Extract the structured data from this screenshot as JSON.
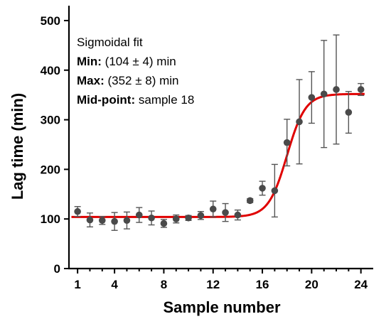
{
  "chart_data": {
    "type": "scatter",
    "xlabel": "Sample number",
    "ylabel": "Lag time (min)",
    "xlim": [
      0.3,
      25
    ],
    "ylim": [
      0,
      530
    ],
    "xticks": [
      1,
      4,
      8,
      12,
      16,
      20,
      24
    ],
    "yticks": [
      0,
      100,
      200,
      300,
      400,
      500
    ],
    "grid": false,
    "colors": {
      "points": "#4a4a4a",
      "errorbars": "#555555",
      "fit": "#e00000"
    },
    "points": [
      {
        "x": 1,
        "y": 115,
        "err": 10
      },
      {
        "x": 2,
        "y": 98,
        "err": 14
      },
      {
        "x": 3,
        "y": 97,
        "err": 8
      },
      {
        "x": 4,
        "y": 95,
        "err": 18
      },
      {
        "x": 5,
        "y": 97,
        "err": 17
      },
      {
        "x": 6,
        "y": 108,
        "err": 15
      },
      {
        "x": 7,
        "y": 102,
        "err": 14
      },
      {
        "x": 8,
        "y": 91,
        "err": 8
      },
      {
        "x": 9,
        "y": 100,
        "err": 8
      },
      {
        "x": 10,
        "y": 102,
        "err": 5
      },
      {
        "x": 11,
        "y": 107,
        "err": 8
      },
      {
        "x": 12,
        "y": 120,
        "err": 16
      },
      {
        "x": 13,
        "y": 113,
        "err": 18
      },
      {
        "x": 14,
        "y": 108,
        "err": 10
      },
      {
        "x": 15,
        "y": 137,
        "err": 4
      },
      {
        "x": 16,
        "y": 162,
        "err": 14
      },
      {
        "x": 17,
        "y": 157,
        "err": 53
      },
      {
        "x": 18,
        "y": 254,
        "err": 47
      },
      {
        "x": 19,
        "y": 296,
        "err": 85
      },
      {
        "x": 20,
        "y": 345,
        "err": 52
      },
      {
        "x": 21,
        "y": 352,
        "err": 108
      },
      {
        "x": 22,
        "y": 361,
        "err": 110
      },
      {
        "x": 23,
        "y": 315,
        "err": 42
      },
      {
        "x": 24,
        "y": 361,
        "err": 12
      }
    ],
    "fit": {
      "model": "sigmoid",
      "min": 104,
      "max": 352,
      "midpoint": 18,
      "slope": 0.75,
      "x_range": [
        0.5,
        24.3
      ]
    },
    "annotation": {
      "title": "Sigmoidal fit",
      "min_label": "Min:",
      "min_value": " (104 ± 4) min",
      "max_label": "Max:",
      "max_value": " (352 ± 8) min",
      "mid_label": "Mid-point:",
      "mid_value": " sample 18"
    }
  }
}
